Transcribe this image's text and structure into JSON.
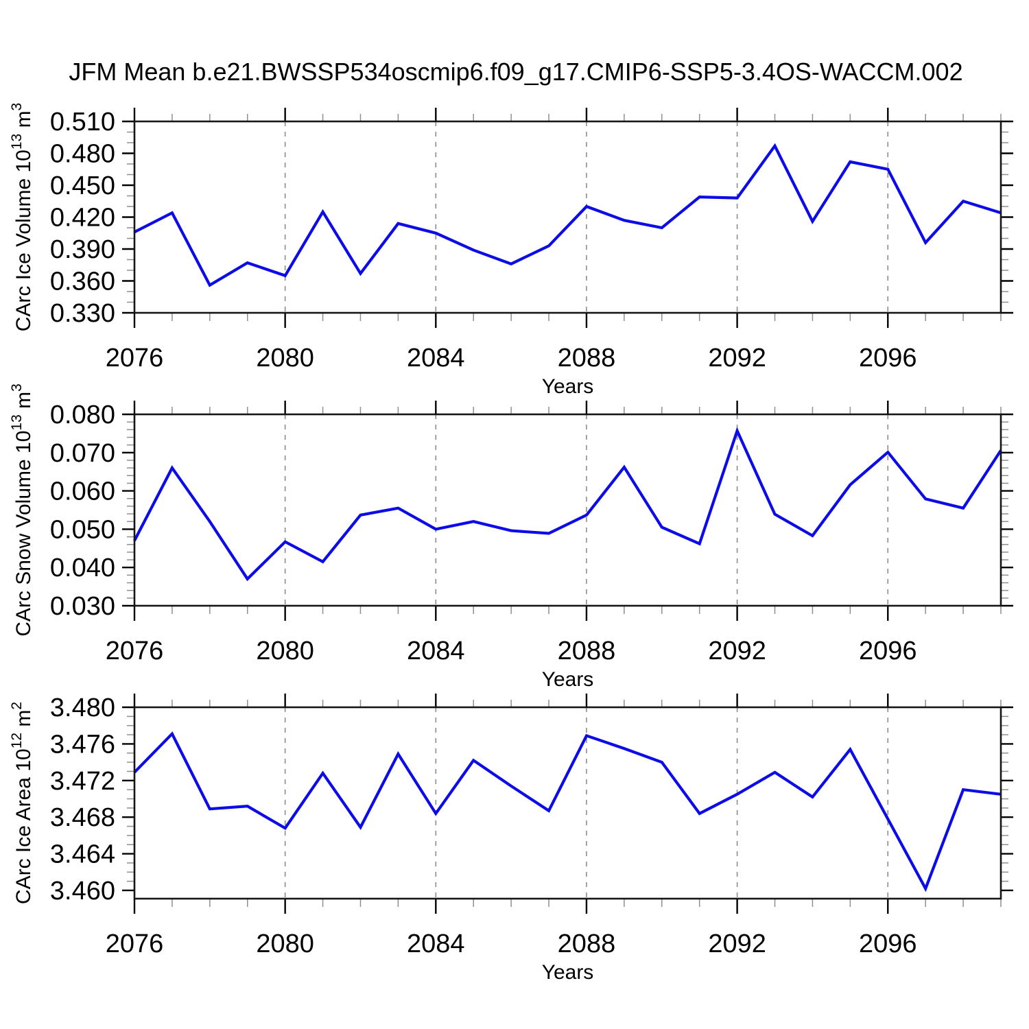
{
  "title": "JFM Mean b.e21.BWSSP534oscmip6.f09_g17.CMIP6-SSP5-3.4OS-WACCM.002",
  "colors": {
    "line": "#0c0ce8",
    "axis": "#161616",
    "grid": "#8c8c8c",
    "minor_tick": "#8f8f8f",
    "text": "#000000",
    "background": "#ffffff"
  },
  "x_axis": {
    "title": "Years",
    "years": [
      2076,
      2077,
      2078,
      2079,
      2080,
      2081,
      2082,
      2083,
      2084,
      2085,
      2086,
      2087,
      2088,
      2089,
      2090,
      2091,
      2092,
      2093,
      2094,
      2095,
      2096,
      2097,
      2098,
      2099
    ],
    "major_ticks": [
      2076,
      2080,
      2084,
      2088,
      2092,
      2096
    ],
    "gridline_years": [
      2080,
      2084,
      2088,
      2092,
      2096
    ]
  },
  "chart_data": [
    {
      "id": "ice-volume",
      "type": "line",
      "title": "CArc Ice Volume 10^13 m^3",
      "y_title": {
        "segments": [
          {
            "t": "CArc Ice Volume 10",
            "sup": false
          },
          {
            "t": "13",
            "sup": true
          },
          {
            "t": " m",
            "sup": false
          },
          {
            "t": "3",
            "sup": true
          }
        ]
      },
      "xlabel": "Years",
      "x": [
        2076,
        2077,
        2078,
        2079,
        2080,
        2081,
        2082,
        2083,
        2084,
        2085,
        2086,
        2087,
        2088,
        2089,
        2090,
        2091,
        2092,
        2093,
        2094,
        2095,
        2096,
        2097,
        2098,
        2099
      ],
      "values": [
        0.406,
        0.424,
        0.356,
        0.377,
        0.365,
        0.425,
        0.367,
        0.414,
        0.405,
        0.389,
        0.376,
        0.393,
        0.43,
        0.417,
        0.41,
        0.439,
        0.438,
        0.487,
        0.416,
        0.472,
        0.465,
        0.396,
        0.435,
        0.424
      ],
      "ylim": [
        0.33,
        0.51
      ],
      "y_major_ticks": [
        0.33,
        0.36,
        0.39,
        0.42,
        0.45,
        0.48,
        0.51
      ],
      "y_minor_step": 0.01,
      "tick_decimals": 3,
      "grid": "vertical-dashed",
      "legend": "none"
    },
    {
      "id": "snow-volume",
      "type": "line",
      "title": "CArc Snow Volume 10^13 m^3",
      "y_title": {
        "segments": [
          {
            "t": "CArc Snow Volume 10",
            "sup": false
          },
          {
            "t": "13",
            "sup": true
          },
          {
            "t": " m",
            "sup": false
          },
          {
            "t": "3",
            "sup": true
          }
        ]
      },
      "xlabel": "Years",
      "x": [
        2076,
        2077,
        2078,
        2079,
        2080,
        2081,
        2082,
        2083,
        2084,
        2085,
        2086,
        2087,
        2088,
        2089,
        2090,
        2091,
        2092,
        2093,
        2094,
        2095,
        2096,
        2097,
        2098,
        2099
      ],
      "values": [
        0.047,
        0.066,
        0.052,
        0.037,
        0.0467,
        0.0415,
        0.0537,
        0.0555,
        0.05,
        0.052,
        0.0496,
        0.0489,
        0.0537,
        0.0662,
        0.0505,
        0.0462,
        0.0757,
        0.0539,
        0.0483,
        0.0616,
        0.0701,
        0.0579,
        0.0555,
        0.0706
      ],
      "ylim": [
        0.03,
        0.08
      ],
      "y_major_ticks": [
        0.03,
        0.04,
        0.05,
        0.06,
        0.07,
        0.08
      ],
      "y_minor_step": 0.002,
      "tick_decimals": 3,
      "grid": "vertical-dashed",
      "legend": "none"
    },
    {
      "id": "ice-area",
      "type": "line",
      "title": "CArc Ice Area 10^12 m^2",
      "y_title": {
        "segments": [
          {
            "t": "CArc Ice Area 10",
            "sup": false
          },
          {
            "t": "12",
            "sup": true
          },
          {
            "t": " m",
            "sup": false
          },
          {
            "t": "2",
            "sup": true
          }
        ]
      },
      "xlabel": "Years",
      "x": [
        2076,
        2077,
        2078,
        2079,
        2080,
        2081,
        2082,
        2083,
        2084,
        2085,
        2086,
        2087,
        2088,
        2089,
        2090,
        2091,
        2092,
        2093,
        2094,
        2095,
        2096,
        2097,
        2098,
        2099
      ],
      "values": [
        3.4729,
        3.4771,
        3.4689,
        3.4692,
        3.4668,
        3.4728,
        3.4669,
        3.4749,
        3.4684,
        3.4742,
        3.4714,
        3.4687,
        3.4769,
        3.4755,
        3.474,
        3.4684,
        3.4705,
        3.4729,
        3.4702,
        3.4754,
        3.4678,
        3.4602,
        3.471,
        3.4705
      ],
      "ylim": [
        3.4591,
        3.48
      ],
      "y_major_ticks": [
        3.46,
        3.464,
        3.468,
        3.472,
        3.476,
        3.48
      ],
      "y_minor_step": 0.001,
      "tick_decimals": 3,
      "grid": "vertical-dashed",
      "legend": "none"
    }
  ]
}
